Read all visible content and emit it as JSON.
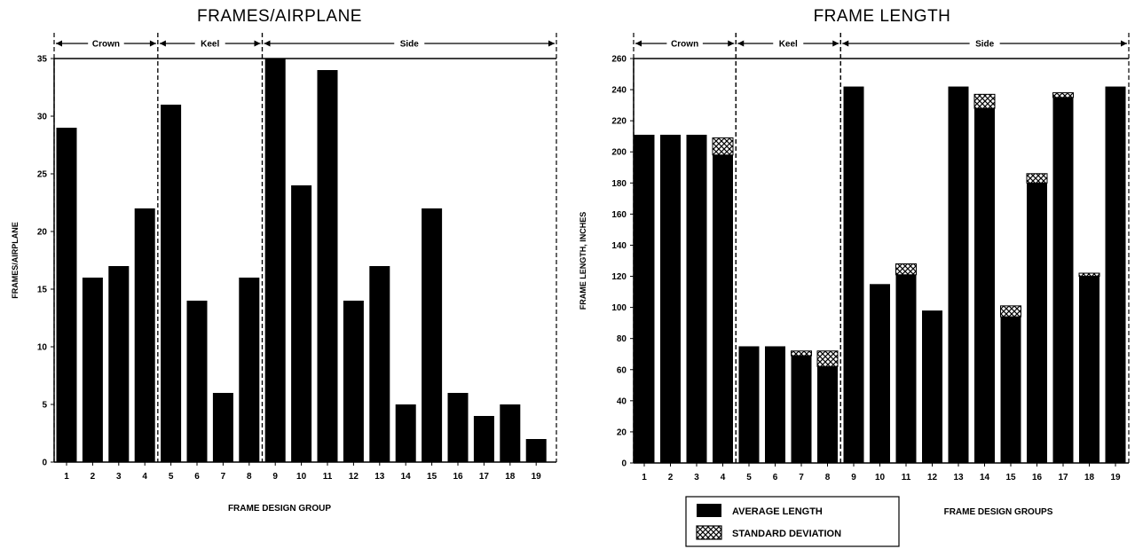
{
  "chart_data": [
    {
      "type": "bar",
      "title": "FRAMES/AIRPLANE",
      "xlabel": "FRAME DESIGN GROUP",
      "ylabel": "FRAMES/AIRPLANE",
      "ylim": [
        0,
        35
      ],
      "yticks": [
        "0",
        "5",
        "10",
        "15",
        "20",
        "25",
        "30",
        "35"
      ],
      "categories": [
        "1",
        "2",
        "3",
        "4",
        "5",
        "6",
        "7",
        "8",
        "9",
        "10",
        "11",
        "12",
        "13",
        "14",
        "15",
        "16",
        "17",
        "18",
        "19"
      ],
      "values": [
        29,
        16,
        17,
        22,
        31,
        14,
        6,
        16,
        35,
        24,
        34,
        14,
        17,
        5,
        22,
        6,
        4,
        5,
        2
      ],
      "regions": [
        {
          "label": "Crown",
          "start": 1,
          "end": 4
        },
        {
          "label": "Keel",
          "start": 5,
          "end": 8
        },
        {
          "label": "Side",
          "start": 9,
          "end": 19
        }
      ],
      "grid": false
    },
    {
      "type": "bar",
      "stacked": true,
      "title": "FRAME LENGTH",
      "xlabel": "FRAME DESIGN GROUPS",
      "ylabel": "FRAME LENGTH, INCHES",
      "ylim": [
        0,
        260
      ],
      "yticks": [
        "0",
        "20",
        "40",
        "60",
        "80",
        "100",
        "120",
        "140",
        "160",
        "180",
        "200",
        "220",
        "240",
        "260"
      ],
      "categories": [
        "1",
        "2",
        "3",
        "4",
        "5",
        "6",
        "7",
        "8",
        "9",
        "10",
        "11",
        "12",
        "13",
        "14",
        "15",
        "16",
        "17",
        "18",
        "19"
      ],
      "series": [
        {
          "name": "AVERAGE LENGTH",
          "values": [
            211,
            211,
            211,
            198,
            75,
            75,
            69,
            62,
            242,
            115,
            121,
            98,
            242,
            228,
            94,
            180,
            235,
            120,
            242
          ]
        },
        {
          "name": "STANDARD DEVIATION",
          "values": [
            0,
            0,
            0,
            11,
            0,
            0,
            3,
            10,
            0,
            0,
            7,
            0,
            0,
            9,
            7,
            6,
            3,
            2,
            0
          ]
        }
      ],
      "regions": [
        {
          "label": "Crown",
          "start": 1,
          "end": 4
        },
        {
          "label": "Keel",
          "start": 5,
          "end": 8
        },
        {
          "label": "Side",
          "start": 9,
          "end": 19
        }
      ],
      "legend_position": "bottom-left",
      "grid": false
    }
  ]
}
